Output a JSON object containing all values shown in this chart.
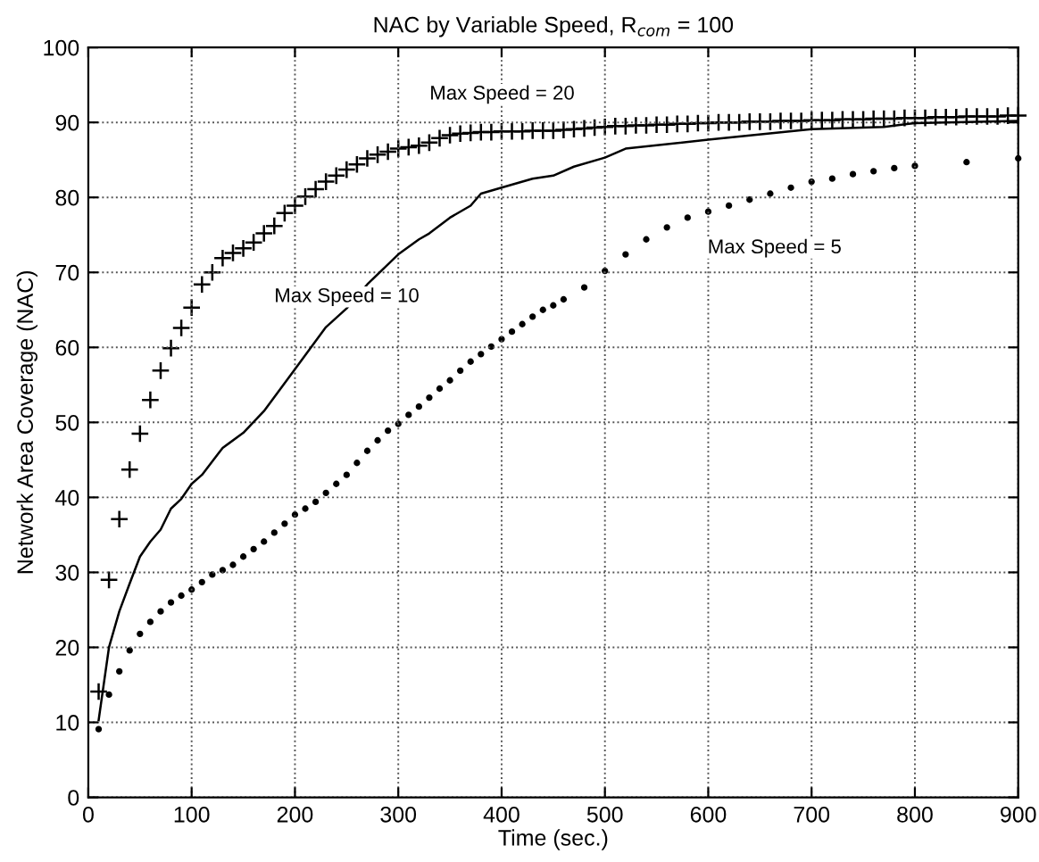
{
  "chart_data": {
    "type": "line",
    "title": "NAC by Variable Speed, R$_{com}$ = 100",
    "xlabel": "Time (sec.)",
    "ylabel": "Network Area Coverage (NAC)",
    "xlim": [
      0,
      900
    ],
    "ylim": [
      0,
      100
    ],
    "xticks": [
      0,
      100,
      200,
      300,
      400,
      500,
      600,
      700,
      800,
      900
    ],
    "yticks": [
      0,
      10,
      20,
      30,
      40,
      50,
      60,
      70,
      80,
      90,
      100
    ],
    "grid": true,
    "line_style": "dotted",
    "series": [
      {
        "type": "scatter",
        "marker": "cross",
        "color": "#000000",
        "x": [
          10,
          20,
          30,
          40,
          50,
          60,
          70,
          80,
          90,
          100,
          110,
          120,
          130,
          140,
          150,
          160,
          170,
          180,
          190,
          200,
          210,
          220,
          230,
          240,
          250,
          260,
          270,
          280,
          290,
          300,
          310,
          320,
          330,
          340,
          350,
          360,
          370,
          380,
          390,
          400,
          410,
          420,
          430,
          440,
          450,
          460,
          470,
          480,
          490,
          500,
          510,
          520,
          530,
          540,
          550,
          560,
          570,
          580,
          590,
          600,
          610,
          620,
          630,
          640,
          650,
          660,
          670,
          680,
          690,
          700,
          710,
          720,
          730,
          740,
          750,
          760,
          770,
          780,
          790,
          800,
          810,
          820,
          830,
          840,
          850,
          860,
          870,
          880,
          890,
          900
        ],
        "values": [
          14.1,
          29.0,
          37.1,
          43.7,
          48.5,
          53.0,
          56.9,
          59.9,
          62.6,
          65.3,
          68.4,
          70.0,
          71.9,
          72.6,
          73.2,
          74.0,
          75.2,
          76.2,
          77.9,
          78.9,
          80.1,
          81.1,
          82.1,
          82.9,
          83.7,
          84.4,
          85.2,
          85.7,
          86.1,
          86.5,
          86.7,
          86.9,
          87.3,
          87.9,
          88.3,
          88.5,
          88.6,
          88.7,
          88.7,
          88.8,
          88.8,
          88.8,
          88.9,
          88.9,
          88.9,
          89.0,
          89.1,
          89.2,
          89.3,
          89.4,
          89.5,
          89.5,
          89.6,
          89.6,
          89.7,
          89.7,
          89.8,
          89.8,
          89.9,
          89.9,
          90.0,
          90.0,
          90.0,
          90.1,
          90.1,
          90.1,
          90.2,
          90.2,
          90.2,
          90.3,
          90.3,
          90.3,
          90.4,
          90.4,
          90.4,
          90.5,
          90.5,
          90.5,
          90.6,
          90.6,
          90.6,
          90.7,
          90.7,
          90.7,
          90.8,
          90.8,
          90.8,
          90.8,
          90.9,
          90.9
        ]
      },
      {
        "line_style": "solid",
        "color": "#000000",
        "x": [
          10,
          20,
          30,
          40,
          50,
          60,
          70,
          80,
          90,
          100,
          110,
          130,
          150,
          170,
          200,
          230,
          250,
          270,
          300,
          320,
          330,
          350,
          370,
          380,
          400,
          430,
          450,
          470,
          500,
          520,
          600,
          700,
          770,
          800,
          900
        ],
        "values": [
          10.3,
          20.0,
          24.8,
          28.5,
          32.1,
          34.1,
          35.7,
          38.5,
          39.8,
          41.8,
          43.0,
          46.6,
          48.6,
          51.5,
          57.1,
          62.7,
          65.2,
          68.4,
          72.4,
          74.4,
          75.2,
          77.3,
          78.9,
          80.5,
          81.3,
          82.5,
          82.9,
          84.1,
          85.3,
          86.5,
          87.7,
          89.1,
          89.4,
          89.9,
          90.2
        ]
      },
      {
        "type": "scatter",
        "marker": "circle",
        "color": "#000000",
        "x": [
          10,
          20,
          30,
          40,
          50,
          60,
          70,
          80,
          90,
          100,
          110,
          120,
          130,
          140,
          150,
          160,
          170,
          180,
          190,
          200,
          210,
          220,
          230,
          240,
          250,
          260,
          270,
          280,
          290,
          300,
          310,
          320,
          330,
          340,
          350,
          360,
          370,
          380,
          390,
          400,
          410,
          420,
          430,
          440,
          450,
          460,
          480,
          500,
          520,
          540,
          560,
          580,
          600,
          620,
          640,
          660,
          680,
          700,
          720,
          740,
          760,
          780,
          800,
          850,
          900
        ],
        "values": [
          9.1,
          13.7,
          16.8,
          19.6,
          21.8,
          23.4,
          24.8,
          26.0,
          26.9,
          27.7,
          28.7,
          29.7,
          30.3,
          31.0,
          32.1,
          33.1,
          34.1,
          35.3,
          36.5,
          37.7,
          38.5,
          39.4,
          40.6,
          41.8,
          43.0,
          44.6,
          46.2,
          47.6,
          48.9,
          49.8,
          51.0,
          52.1,
          53.3,
          54.5,
          55.6,
          56.9,
          58.1,
          59.1,
          60.1,
          61.1,
          62.1,
          63.1,
          64.1,
          65.0,
          65.6,
          66.4,
          68.0,
          70.2,
          72.4,
          74.4,
          76.0,
          77.3,
          78.1,
          78.9,
          79.7,
          80.5,
          81.3,
          82.1,
          82.5,
          83.1,
          83.5,
          83.9,
          84.2,
          84.7,
          85.2
        ]
      }
    ],
    "annotations": [
      "Max Speed = 20",
      "Max Speed = 10",
      "Max Speed = 5"
    ]
  }
}
